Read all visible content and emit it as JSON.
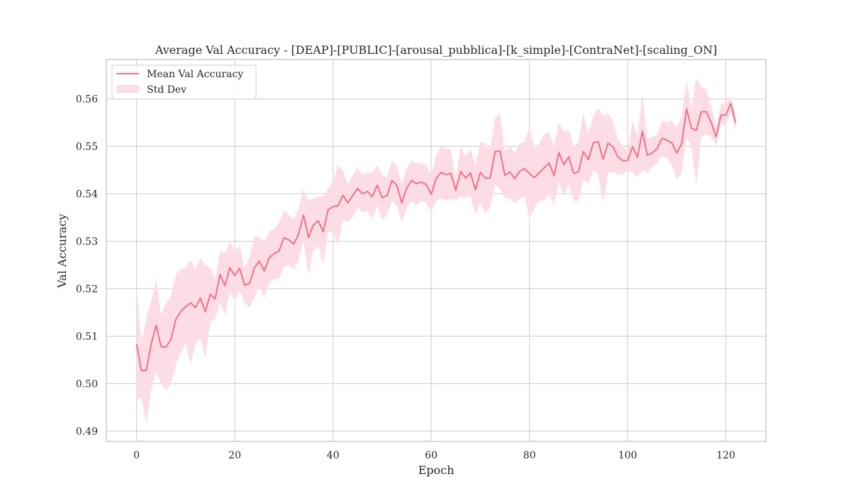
{
  "chart_data": {
    "type": "line",
    "title": "Average Val Accuracy - [DEAP]-[PUBLIC]-[arousal_pubblica]-[k_simple]-[ContraNet]-[scaling_ON]",
    "xlabel": "Epoch",
    "ylabel": "Val Accuracy",
    "xlim": [
      -6.15,
      128.15
    ],
    "ylim": [
      0.4878,
      0.5683
    ],
    "xticks": [
      0,
      20,
      40,
      60,
      80,
      100,
      120
    ],
    "yticks": [
      0.49,
      0.5,
      0.51,
      0.52,
      0.53,
      0.54,
      0.55,
      0.56
    ],
    "ytick_labels": [
      "0.49",
      "0.50",
      "0.51",
      "0.52",
      "0.53",
      "0.54",
      "0.55",
      "0.56"
    ],
    "grid": true,
    "legend_position": "top-left",
    "line_color": "#f0708a",
    "band_color": "#fddde5",
    "series": [
      {
        "name": "Mean Val Accuracy",
        "x": [
          0,
          1,
          2,
          3,
          4,
          5,
          6,
          7,
          8,
          9,
          10,
          11,
          12,
          13,
          14,
          15,
          16,
          17,
          18,
          19,
          20,
          21,
          22,
          23,
          24,
          25,
          26,
          27,
          28,
          29,
          30,
          31,
          32,
          33,
          34,
          35,
          36,
          37,
          38,
          39,
          40,
          41,
          42,
          43,
          44,
          45,
          46,
          47,
          48,
          49,
          50,
          51,
          52,
          53,
          54,
          55,
          56,
          57,
          58,
          59,
          60,
          61,
          62,
          63,
          64,
          65,
          66,
          67,
          68,
          69,
          70,
          71,
          72,
          73,
          74,
          75,
          76,
          77,
          78,
          79,
          80,
          81,
          82,
          83,
          84,
          85,
          86,
          87,
          88,
          89,
          90,
          91,
          92,
          93,
          94,
          95,
          96,
          97,
          98,
          99,
          100,
          101,
          102,
          103,
          104,
          105,
          106,
          107,
          108,
          109,
          110,
          111,
          112,
          113,
          114,
          115,
          116,
          117,
          118,
          119,
          120,
          121,
          122
        ],
        "y": [
          0.5083,
          0.5027,
          0.5028,
          0.5085,
          0.5123,
          0.5078,
          0.5077,
          0.5093,
          0.5135,
          0.5152,
          0.5162,
          0.517,
          0.516,
          0.518,
          0.5152,
          0.5188,
          0.5178,
          0.523,
          0.5206,
          0.5244,
          0.5228,
          0.5243,
          0.5207,
          0.5211,
          0.5244,
          0.5258,
          0.5237,
          0.5265,
          0.5274,
          0.5279,
          0.5307,
          0.5303,
          0.5294,
          0.5315,
          0.5355,
          0.5308,
          0.5334,
          0.5343,
          0.532,
          0.5366,
          0.5373,
          0.5374,
          0.5397,
          0.5381,
          0.5396,
          0.5411,
          0.54,
          0.5405,
          0.5394,
          0.5418,
          0.5392,
          0.5396,
          0.5428,
          0.5418,
          0.5381,
          0.5412,
          0.5428,
          0.5421,
          0.5425,
          0.5419,
          0.5399,
          0.5432,
          0.5445,
          0.544,
          0.5443,
          0.5407,
          0.5447,
          0.5433,
          0.5444,
          0.5408,
          0.5445,
          0.5433,
          0.5433,
          0.5489,
          0.549,
          0.5439,
          0.5446,
          0.5432,
          0.5447,
          0.5453,
          0.5443,
          0.5434,
          0.5444,
          0.5455,
          0.5465,
          0.5438,
          0.5487,
          0.5461,
          0.5478,
          0.5443,
          0.5447,
          0.5489,
          0.5472,
          0.5507,
          0.551,
          0.5473,
          0.5507,
          0.5499,
          0.5478,
          0.547,
          0.547,
          0.5499,
          0.5477,
          0.5532,
          0.5481,
          0.5486,
          0.5495,
          0.5517,
          0.5513,
          0.5507,
          0.5486,
          0.5505,
          0.5579,
          0.5538,
          0.5534,
          0.5573,
          0.5573,
          0.5551,
          0.552,
          0.5566,
          0.5566,
          0.559,
          0.5549
        ]
      },
      {
        "name": "Std Dev",
        "lower": [
          0.4965,
          0.497,
          0.4915,
          0.4985,
          0.5025,
          0.5,
          0.4985,
          0.5,
          0.504,
          0.5065,
          0.5085,
          0.504,
          0.5085,
          0.5095,
          0.5055,
          0.513,
          0.5135,
          0.517,
          0.5145,
          0.519,
          0.5175,
          0.5195,
          0.517,
          0.516,
          0.518,
          0.5205,
          0.518,
          0.521,
          0.522,
          0.522,
          0.5245,
          0.525,
          0.524,
          0.526,
          0.53,
          0.523,
          0.528,
          0.529,
          0.525,
          0.532,
          0.532,
          0.529,
          0.5345,
          0.534,
          0.535,
          0.537,
          0.536,
          0.5365,
          0.5345,
          0.5375,
          0.5345,
          0.5355,
          0.5385,
          0.5375,
          0.534,
          0.537,
          0.5385,
          0.5375,
          0.5385,
          0.538,
          0.536,
          0.5385,
          0.539,
          0.5385,
          0.539,
          0.5385,
          0.5395,
          0.539,
          0.5395,
          0.5355,
          0.538,
          0.536,
          0.537,
          0.542,
          0.541,
          0.539,
          0.539,
          0.538,
          0.539,
          0.5395,
          0.5345,
          0.537,
          0.5385,
          0.5385,
          0.54,
          0.5375,
          0.5425,
          0.5395,
          0.542,
          0.5385,
          0.5385,
          0.543,
          0.542,
          0.545,
          0.544,
          0.538,
          0.5445,
          0.5445,
          0.544,
          0.544,
          0.545,
          0.5445,
          0.5435,
          0.545,
          0.5445,
          0.5455,
          0.5465,
          0.548,
          0.5475,
          0.546,
          0.543,
          0.5445,
          0.552,
          0.5495,
          0.542,
          0.552,
          0.5525,
          0.552,
          0.55,
          0.5545,
          0.5545,
          0.5575,
          0.553
        ],
        "upper": [
          0.52,
          0.5085,
          0.514,
          0.5175,
          0.522,
          0.5145,
          0.517,
          0.5185,
          0.523,
          0.524,
          0.5245,
          0.526,
          0.524,
          0.5265,
          0.525,
          0.5245,
          0.522,
          0.528,
          0.5275,
          0.53,
          0.528,
          0.529,
          0.5245,
          0.5265,
          0.531,
          0.531,
          0.5295,
          0.532,
          0.5325,
          0.534,
          0.5365,
          0.5355,
          0.5345,
          0.537,
          0.541,
          0.5385,
          0.539,
          0.5395,
          0.5395,
          0.541,
          0.5425,
          0.546,
          0.545,
          0.542,
          0.544,
          0.5455,
          0.544,
          0.5445,
          0.5445,
          0.546,
          0.544,
          0.5435,
          0.547,
          0.546,
          0.542,
          0.5455,
          0.547,
          0.5465,
          0.5465,
          0.546,
          0.544,
          0.548,
          0.55,
          0.5495,
          0.5495,
          0.543,
          0.55,
          0.548,
          0.5495,
          0.546,
          0.551,
          0.5505,
          0.5495,
          0.556,
          0.557,
          0.549,
          0.55,
          0.5485,
          0.5505,
          0.551,
          0.554,
          0.55,
          0.5505,
          0.5525,
          0.553,
          0.55,
          0.555,
          0.553,
          0.5535,
          0.55,
          0.551,
          0.557,
          0.5525,
          0.5565,
          0.558,
          0.5565,
          0.557,
          0.5555,
          0.5515,
          0.55,
          0.549,
          0.5555,
          0.552,
          0.561,
          0.5515,
          0.552,
          0.5525,
          0.5555,
          0.555,
          0.5555,
          0.554,
          0.5565,
          0.564,
          0.558,
          0.5645,
          0.5625,
          0.562,
          0.5585,
          0.554,
          0.559,
          0.559,
          0.5605,
          0.5565
        ]
      }
    ]
  }
}
